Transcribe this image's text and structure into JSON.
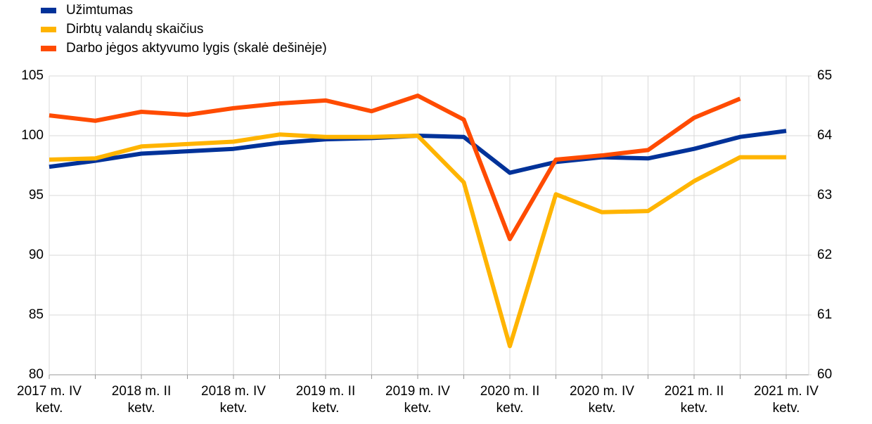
{
  "chart_data": {
    "type": "line",
    "categories": [
      "2017 m. IV\nketv.",
      null,
      "2018 m. II\nketv.",
      null,
      "2018 m. IV\nketv.",
      null,
      "2019 m. II\nketv.",
      null,
      "2019 m. IV\nketv.",
      null,
      "2020 m. II\nketv.",
      null,
      "2020 m. IV\nketv.",
      null,
      "2021 m. II\nketv.",
      null,
      "2021 m. IV\nketv."
    ],
    "series": [
      {
        "name": "Užimtumas",
        "color": "#003299",
        "values": [
          97.4,
          97.9,
          98.5,
          98.7,
          98.9,
          99.4,
          99.7,
          99.8,
          100.0,
          99.9,
          96.9,
          97.8,
          98.2,
          98.1,
          98.9,
          99.9,
          100.4
        ]
      },
      {
        "name": "Dirbtų valandų skaičius",
        "color": "#ffb400",
        "values": [
          98.0,
          98.1,
          99.1,
          99.3,
          99.5,
          100.1,
          99.9,
          99.9,
          100.0,
          96.1,
          82.4,
          95.1,
          93.6,
          93.7,
          96.2,
          98.2,
          98.2
        ]
      },
      {
        "name": "Darbo jėgos aktyvumo lygis (skalė dešinėje)",
        "color": "#ff4b00",
        "axis": "y2",
        "values": [
          64.34,
          64.25,
          64.4,
          64.35,
          64.46,
          64.54,
          64.59,
          64.41,
          64.67,
          64.27,
          62.27,
          63.6,
          63.67,
          63.76,
          64.3,
          64.62,
          null
        ]
      }
    ],
    "ylim": [
      80,
      105
    ],
    "yticks": [
      80,
      85,
      90,
      95,
      100,
      105
    ],
    "y2lim": [
      60,
      65
    ],
    "y2ticks": [
      60,
      61,
      62,
      63,
      64,
      65
    ],
    "grid": true
  }
}
